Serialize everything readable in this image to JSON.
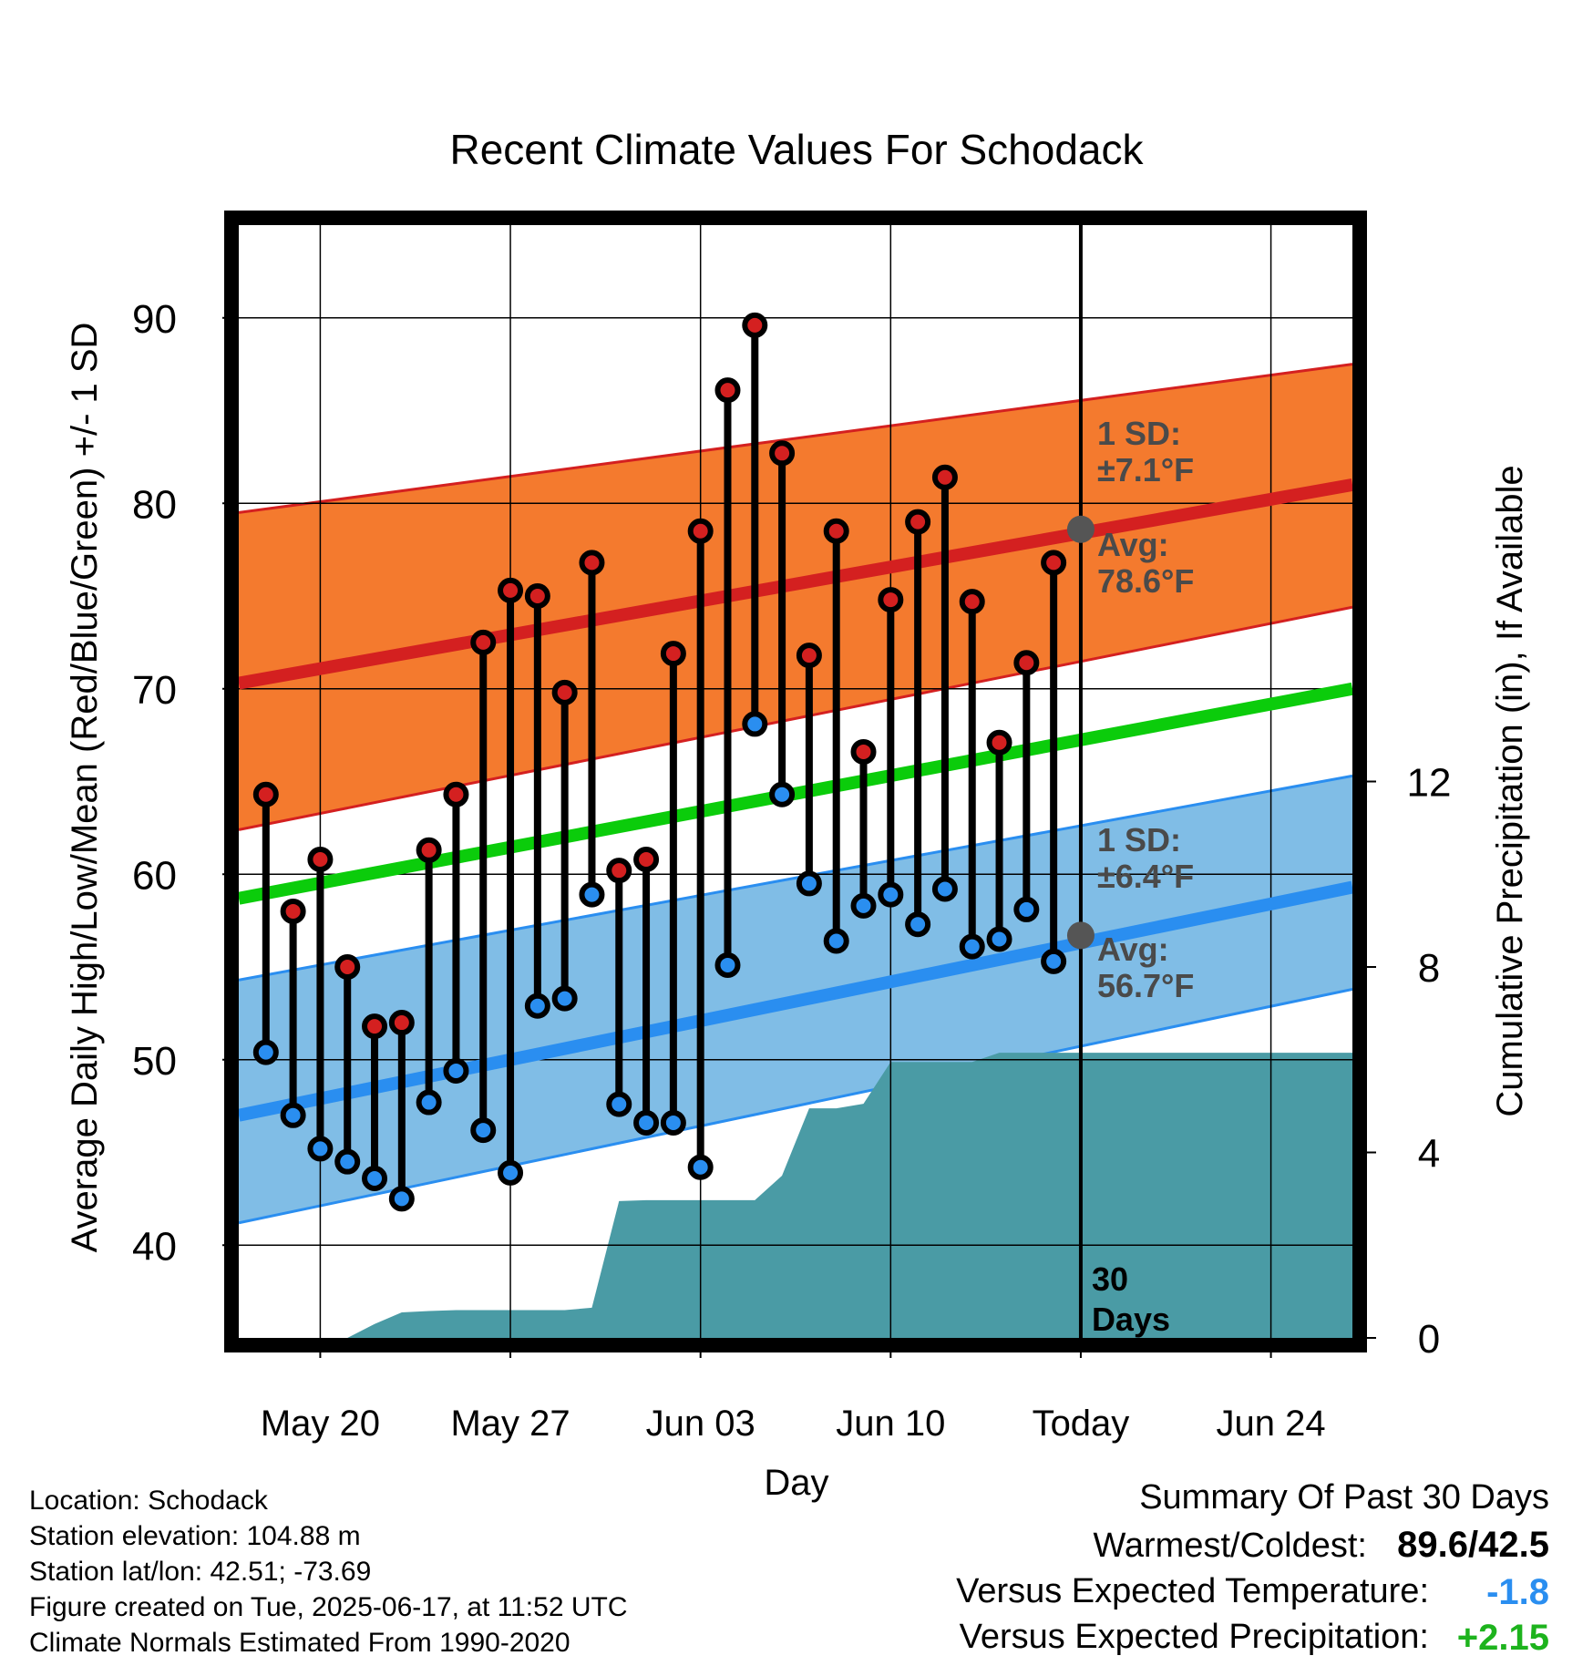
{
  "chart_data": {
    "type": "line",
    "title": "Recent Climate Values For Schodack",
    "xlabel": "Day",
    "ylabel": "Average Daily High/Low/Mean (Red/Blue/Green) +/- 1 SD",
    "y2label": "Cumulative Precipitation (in), If Available",
    "ylim": [
      35,
      95
    ],
    "y2lim": [
      0,
      24
    ],
    "x_dates": {
      "start": "2025-05-17",
      "end": "2025-06-27",
      "today": "2025-06-17"
    },
    "x_ticks": [
      {
        "date": "2025-05-20",
        "label": "May 20"
      },
      {
        "date": "2025-05-27",
        "label": "May 27"
      },
      {
        "date": "2025-06-03",
        "label": "Jun 03"
      },
      {
        "date": "2025-06-10",
        "label": "Jun 10"
      },
      {
        "date": "2025-06-17",
        "label": "Today"
      },
      {
        "date": "2025-06-24",
        "label": "Jun 24"
      }
    ],
    "y_ticks": [
      40,
      50,
      60,
      70,
      80,
      90
    ],
    "y2_ticks": [
      0,
      4,
      8,
      12
    ],
    "grid": true,
    "days": [
      "2025-05-18",
      "2025-05-19",
      "2025-05-20",
      "2025-05-21",
      "2025-05-22",
      "2025-05-23",
      "2025-05-24",
      "2025-05-25",
      "2025-05-26",
      "2025-05-27",
      "2025-05-28",
      "2025-05-29",
      "2025-05-30",
      "2025-05-31",
      "2025-06-01",
      "2025-06-02",
      "2025-06-03",
      "2025-06-04",
      "2025-06-05",
      "2025-06-06",
      "2025-06-07",
      "2025-06-08",
      "2025-06-09",
      "2025-06-10",
      "2025-06-11",
      "2025-06-12",
      "2025-06-13",
      "2025-06-14",
      "2025-06-15",
      "2025-06-16"
    ],
    "series": [
      {
        "name": "High",
        "color": "#d42020",
        "values": [
          64.3,
          58.0,
          60.8,
          55.0,
          51.8,
          52.0,
          61.3,
          64.3,
          72.5,
          75.3,
          75.0,
          69.8,
          76.8,
          60.2,
          60.8,
          71.9,
          78.5,
          86.1,
          89.6,
          82.7,
          71.8,
          78.5,
          66.6,
          74.8,
          79.0,
          81.4,
          74.7,
          67.1,
          71.4,
          76.8
        ]
      },
      {
        "name": "Low",
        "color": "#2a8ef0",
        "values": [
          50.4,
          47.0,
          45.2,
          44.5,
          43.6,
          42.5,
          47.7,
          49.4,
          46.2,
          43.9,
          52.9,
          53.3,
          58.9,
          47.6,
          46.6,
          46.6,
          44.2,
          55.1,
          68.1,
          64.3,
          59.5,
          56.4,
          58.3,
          58.9,
          57.3,
          59.2,
          56.1,
          56.5,
          58.1,
          55.3
        ]
      }
    ],
    "normals": {
      "start": "2025-05-17",
      "end": "2025-06-27",
      "high_avg": [
        70.3,
        81.0
      ],
      "high_upper": [
        79.5,
        87.5
      ],
      "high_lower": [
        62.4,
        74.4
      ],
      "mean_avg": [
        58.7,
        70.0
      ],
      "low_avg": [
        47.0,
        59.3
      ],
      "low_upper": [
        54.3,
        65.3
      ],
      "low_lower": [
        41.2,
        53.8
      ],
      "colors": {
        "high_band": "#f47a2e",
        "high_line": "#d42020",
        "mean_line": "#0bcc0b",
        "low_band": "#80bde6",
        "low_line": "#2a8ef0",
        "precip": "#4a9ba5"
      }
    },
    "precip_cumulative": [
      {
        "date": "2025-05-17",
        "value": 0
      },
      {
        "date": "2025-05-19",
        "value": 0
      },
      {
        "date": "2025-05-20",
        "value": 0
      },
      {
        "date": "2025-05-21",
        "value": 0
      },
      {
        "date": "2025-05-22",
        "value": 0.3
      },
      {
        "date": "2025-05-23",
        "value": 0.55
      },
      {
        "date": "2025-05-24",
        "value": 0.58
      },
      {
        "date": "2025-05-25",
        "value": 0.6
      },
      {
        "date": "2025-05-26",
        "value": 0.6
      },
      {
        "date": "2025-05-27",
        "value": 0.6
      },
      {
        "date": "2025-05-28",
        "value": 0.6
      },
      {
        "date": "2025-05-29",
        "value": 0.6
      },
      {
        "date": "2025-05-30",
        "value": 0.65
      },
      {
        "date": "2025-05-31",
        "value": 2.95
      },
      {
        "date": "2025-06-01",
        "value": 2.97
      },
      {
        "date": "2025-06-02",
        "value": 2.97
      },
      {
        "date": "2025-06-03",
        "value": 2.97
      },
      {
        "date": "2025-06-04",
        "value": 2.97
      },
      {
        "date": "2025-06-05",
        "value": 2.97
      },
      {
        "date": "2025-06-06",
        "value": 3.5
      },
      {
        "date": "2025-06-07",
        "value": 4.95
      },
      {
        "date": "2025-06-08",
        "value": 4.95
      },
      {
        "date": "2025-06-09",
        "value": 5.05
      },
      {
        "date": "2025-06-10",
        "value": 5.95
      },
      {
        "date": "2025-06-11",
        "value": 5.95
      },
      {
        "date": "2025-06-12",
        "value": 5.95
      },
      {
        "date": "2025-06-13",
        "value": 5.95
      },
      {
        "date": "2025-06-14",
        "value": 6.15
      },
      {
        "date": "2025-06-15",
        "value": 6.15
      },
      {
        "date": "2025-06-16",
        "value": 6.15
      },
      {
        "date": "2025-06-17",
        "value": 6.15
      },
      {
        "date": "2025-06-27",
        "value": 6.15
      }
    ],
    "today_markers": {
      "high_avg": 78.6,
      "low_avg": 56.7
    },
    "annotations": {
      "high_sd_label": "1 SD:",
      "high_sd_value": "±7.1°F",
      "high_avg_label": "Avg:",
      "high_avg_value": "78.6°F",
      "low_sd_label": "1 SD:",
      "low_sd_value": "±6.4°F",
      "low_avg_label": "Avg:",
      "low_avg_value": "56.7°F",
      "days_number": "30",
      "days_word": "Days"
    }
  },
  "footer": {
    "location": "Location: Schodack",
    "elevation": "Station elevation: 104.88 m",
    "latlon": "Station lat/lon: 42.51; -73.69",
    "created": "Figure created on Tue, 2025-06-17, at 11:52 UTC",
    "normals": "Climate Normals Estimated From 1990-2020"
  },
  "summary": {
    "title": "Summary Of Past 30 Days",
    "warm_cold_label": "Warmest/Coldest:",
    "warm_cold_value": "89.6/42.5",
    "temp_label": "Versus Expected Temperature:",
    "temp_value": "-1.8",
    "temp_color": "#2a8ef0",
    "precip_label": "Versus Expected Precipitation:",
    "precip_value": "+2.15",
    "precip_color": "#1db31d"
  }
}
